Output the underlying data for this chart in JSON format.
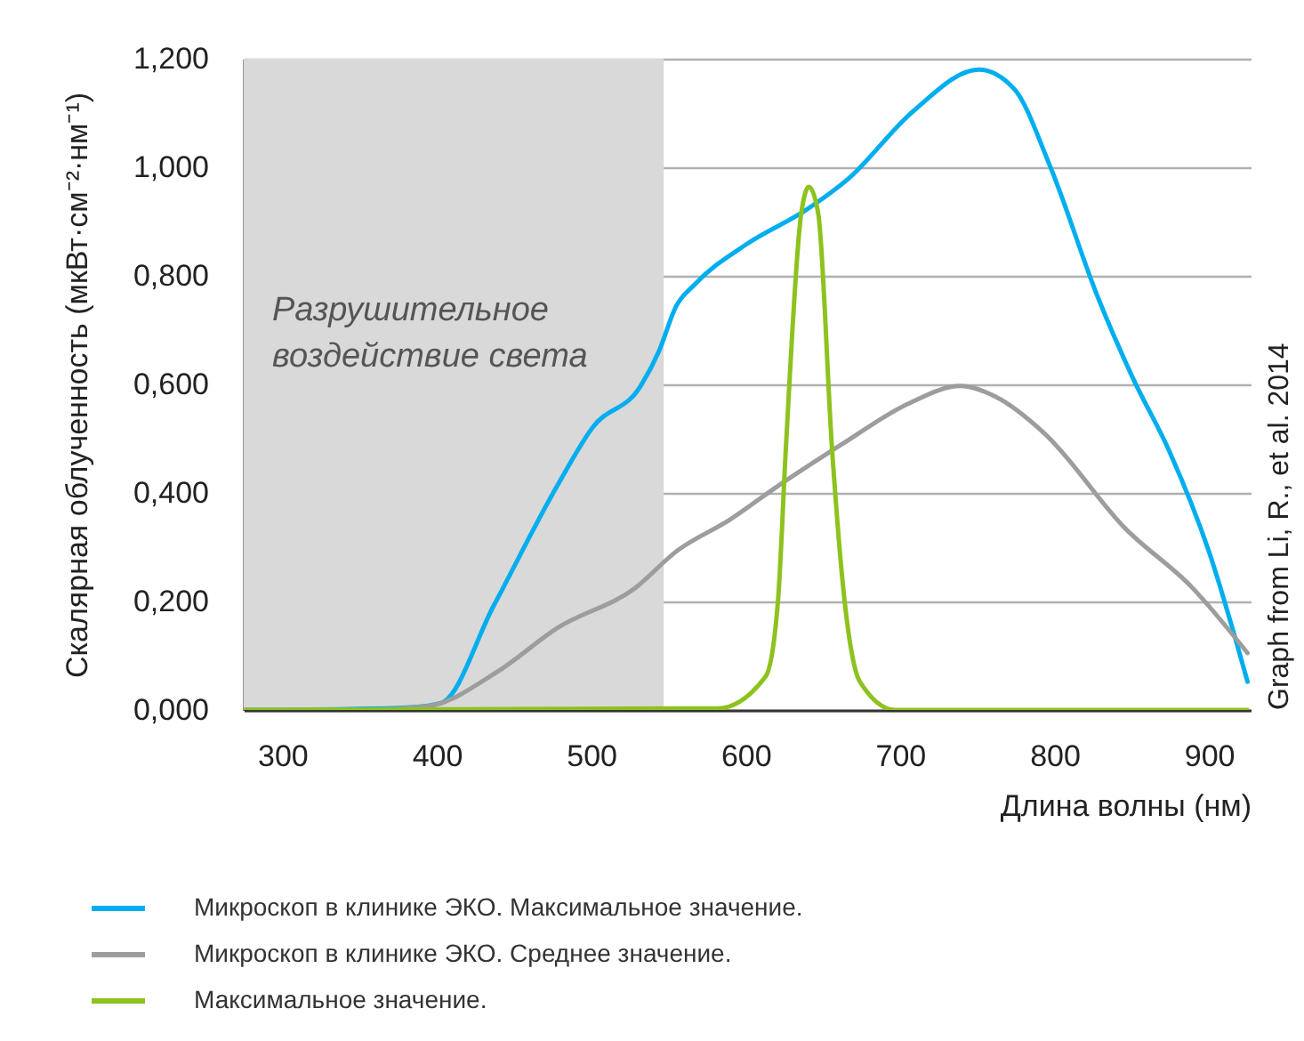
{
  "chart_data": {
    "type": "line",
    "xlabel": "Длина волны (нм)",
    "ylabel": "Скалярная облученность (мкВт·см⁻²·нм⁻¹)",
    "xlim": [
      275,
      927
    ],
    "xticks": [
      300,
      400,
      500,
      600,
      700,
      800,
      900
    ],
    "ylim": [
      0,
      1.2
    ],
    "yticks": [
      {
        "value": 0,
        "label": "0,000"
      },
      {
        "value": 0.2,
        "label": "0,200"
      },
      {
        "value": 0.4,
        "label": "0,400"
      },
      {
        "value": 0.6,
        "label": "0,600"
      },
      {
        "value": 0.8,
        "label": "0,800"
      },
      {
        "value": 1.0,
        "label": "1,000"
      },
      {
        "value": 1.2,
        "label": "1,200"
      }
    ],
    "grid": "y",
    "legend": "bottom",
    "line_style": "solid",
    "bands": [
      {
        "axis": "x",
        "from": 275,
        "to": 547,
        "label": "Разрушительное воздействие света",
        "color": "#d9d9d9"
      }
    ],
    "annotations": [
      "Graph from Li, R., et al. 2014"
    ],
    "series": [
      {
        "name": "Микроскоп в клинике ЭКО. Максимальное значение.",
        "color": "#00aeef",
        "x": [
          276,
          348,
          383,
          403,
          437,
          478,
          501,
          532,
          544,
          555,
          567,
          601,
          639,
          667,
          708,
          751,
          774,
          797,
          828,
          851,
          874,
          900,
          925
        ],
        "values": [
          0,
          0.002,
          0.005,
          0.013,
          0.193,
          0.413,
          0.521,
          0.597,
          0.662,
          0.744,
          0.784,
          0.859,
          0.921,
          0.98,
          1.102,
          1.18,
          1.144,
          1.003,
          0.761,
          0.61,
          0.479,
          0.292,
          0.052
        ]
      },
      {
        "name": "Микроскоп в клинике ЭКО. Среднее значение.",
        "color": "#9d9d9d",
        "x": [
          276,
          348,
          394,
          440,
          478,
          529,
          555,
          590,
          621,
          662,
          705,
          739,
          762,
          793,
          846,
          889,
          925
        ],
        "values": [
          0,
          0,
          0.007,
          0.072,
          0.151,
          0.226,
          0.292,
          0.351,
          0.413,
          0.489,
          0.564,
          0.597,
          0.577,
          0.511,
          0.334,
          0.226,
          0.105
        ]
      },
      {
        "name": "Максимальное значение.",
        "color": "#8dc21f",
        "x": [
          276,
          582,
          613,
          621,
          626,
          636,
          641,
          647,
          656,
          664,
          674,
          697,
          925
        ],
        "values": [
          0,
          0.003,
          0.062,
          0.203,
          0.479,
          0.915,
          0.964,
          0.915,
          0.479,
          0.203,
          0.052,
          0,
          0
        ]
      }
    ]
  }
}
